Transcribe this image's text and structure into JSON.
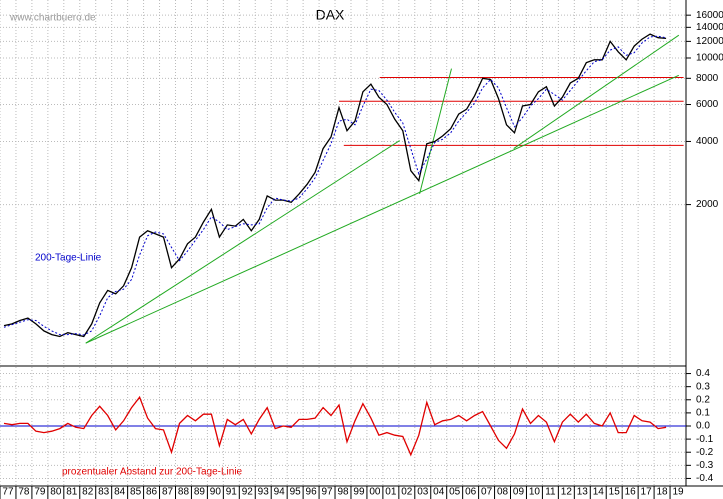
{
  "chart_data": [
    {
      "type": "line",
      "title": "DAX",
      "source": "www.chartbuero.de",
      "categories": [
        "77",
        null,
        "78",
        null,
        "79",
        null,
        "80",
        null,
        "81",
        null,
        "82",
        null,
        "83",
        null,
        "84",
        null,
        "85",
        null,
        "86",
        null,
        "87",
        null,
        "88",
        null,
        "89",
        null,
        "90",
        null,
        "91",
        null,
        "92",
        null,
        "93",
        null,
        "94",
        null,
        "95",
        null,
        "96",
        null,
        "97",
        null,
        "98",
        null,
        "99",
        null,
        "00",
        null,
        "01",
        null,
        "02",
        null,
        "03",
        null,
        "04",
        null,
        "05",
        null,
        "06",
        null,
        "07",
        null,
        "08",
        null,
        "09",
        null,
        "10",
        null,
        "11",
        null,
        "12",
        null,
        "13",
        null,
        "14",
        null,
        "15",
        null,
        "16",
        null,
        "17",
        null,
        "18",
        null,
        "19",
        null
      ],
      "series": [
        {
          "color": "#000000",
          "values": [
            530,
            540,
            560,
            575,
            540,
            500,
            480,
            470,
            490,
            480,
            470,
            540,
            680,
            780,
            750,
            820,
            1000,
            1400,
            1500,
            1450,
            1400,
            1000,
            1100,
            1300,
            1400,
            1650,
            1900,
            1400,
            1600,
            1580,
            1700,
            1500,
            1700,
            2200,
            2100,
            2100,
            2050,
            2250,
            2500,
            2850,
            3700,
            4200,
            5800,
            4500,
            5000,
            6900,
            7500,
            6500,
            6000,
            5100,
            4500,
            2900,
            2600,
            3900,
            4000,
            4250,
            4600,
            5400,
            5700,
            6600,
            8000,
            7900,
            6400,
            4800,
            4400,
            5900,
            6000,
            6900,
            7300,
            5900,
            6500,
            7600,
            8000,
            9500,
            9800,
            9800,
            12000,
            10700,
            9800,
            11400,
            12300,
            13000,
            12500,
            12400,
            null,
            null
          ]
        },
        {
          "name": "200-Tage-Linie",
          "color": "#0000cc",
          "dashed": true,
          "values": [
            520,
            535,
            550,
            565,
            560,
            525,
            500,
            480,
            480,
            485,
            478,
            500,
            590,
            720,
            770,
            790,
            880,
            1150,
            1420,
            1480,
            1450,
            1250,
            1080,
            1200,
            1350,
            1520,
            1750,
            1650,
            1520,
            1570,
            1620,
            1600,
            1620,
            1930,
            2150,
            2100,
            2080,
            2150,
            2380,
            2680,
            3250,
            3900,
            5000,
            5100,
            4800,
            5900,
            7100,
            7000,
            6300,
            5500,
            4900,
            3700,
            2800,
            3300,
            3950,
            4100,
            4400,
            5000,
            5500,
            6100,
            7200,
            7900,
            7200,
            5800,
            4700,
            5200,
            5900,
            6400,
            7100,
            6700,
            6300,
            7000,
            7800,
            8700,
            9600,
            9800,
            10900,
            11300,
            10300,
            10600,
            11800,
            12600,
            12700,
            12500,
            null,
            null
          ]
        }
      ],
      "yscale": "log",
      "ylim": [
        340,
        18900
      ],
      "yticks": [
        2000,
        4000,
        6000,
        8000,
        10000,
        12000,
        14000,
        16000
      ],
      "grid": true,
      "hlines": [
        {
          "value": 8070,
          "x": [
            47.1,
            85.2
          ],
          "color": "#e00000"
        },
        {
          "value": 6220,
          "x": [
            42,
            85.2
          ],
          "color": "#e00000"
        },
        {
          "value": 3830,
          "x": [
            42.6,
            85.2
          ],
          "color": "#e00000"
        }
      ],
      "trendlines": [
        {
          "x": [
            10.25,
            49.6
          ],
          "values": [
            437,
            4040
          ],
          "color": "#22aa22"
        },
        {
          "x": [
            10.25,
            84.6
          ],
          "values": [
            437,
            8270
          ],
          "color": "#22aa22"
        },
        {
          "x": [
            52.1,
            56.1
          ],
          "values": [
            2250,
            8900
          ],
          "color": "#22aa22"
        },
        {
          "x": [
            63.9,
            84.6
          ],
          "values": [
            3700,
            12840
          ],
          "color": "#22aa22"
        }
      ]
    },
    {
      "type": "line",
      "series": [
        {
          "name": "prozentualer Abstand zur 200-Tage-Linie",
          "color": "#e00000",
          "values": [
            0.02,
            0.01,
            0.02,
            0.02,
            -0.04,
            -0.05,
            -0.04,
            -0.02,
            0.02,
            -0.01,
            -0.02,
            0.08,
            0.15,
            0.08,
            -0.03,
            0.04,
            0.14,
            0.22,
            0.06,
            -0.02,
            -0.03,
            -0.2,
            0.02,
            0.08,
            0.04,
            0.09,
            0.09,
            -0.15,
            0.05,
            0.01,
            0.05,
            -0.06,
            0.05,
            0.14,
            -0.02,
            0,
            -0.01,
            0.05,
            0.05,
            0.06,
            0.14,
            0.08,
            0.16,
            -0.12,
            0.04,
            0.17,
            0.06,
            -0.07,
            -0.05,
            -0.07,
            -0.08,
            -0.22,
            -0.07,
            0.18,
            0.01,
            0.04,
            0.05,
            0.08,
            0.04,
            0.08,
            0.11,
            0,
            -0.11,
            -0.17,
            -0.06,
            0.13,
            0.02,
            0.08,
            0.03,
            -0.12,
            0.03,
            0.09,
            0.03,
            0.09,
            0.02,
            0,
            0.1,
            -0.05,
            -0.05,
            0.08,
            0.04,
            0.03,
            -0.02,
            -0.01,
            null,
            null
          ]
        }
      ],
      "ylim": [
        -0.45,
        0.45
      ],
      "yticks": [
        -0.4,
        -0.3,
        -0.2,
        -0.1,
        {
          "value": 0,
          "label": "0.0"
        },
        0.1,
        0.2,
        0.3,
        0.4
      ],
      "grid": true,
      "zero_line_color": "#0000cc"
    }
  ]
}
